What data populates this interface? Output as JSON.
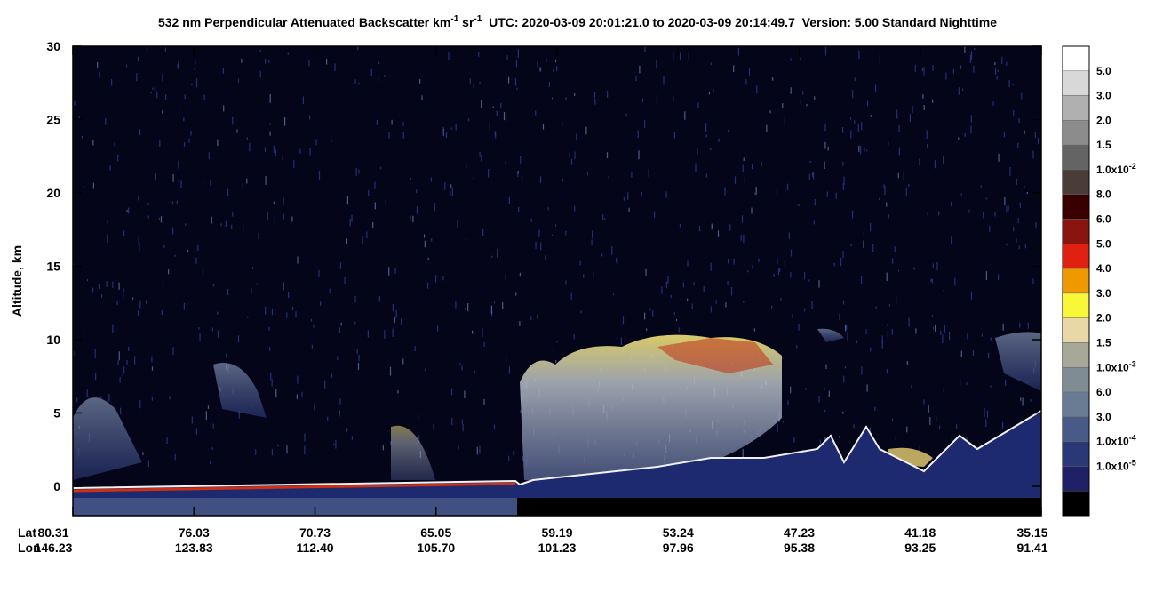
{
  "chart_data": {
    "type": "heatmap",
    "title": {
      "main": "532 nm Perpendicular Attenuated Backscatter km",
      "sup1": "-1",
      "mid": " sr",
      "sup2": "-1",
      "rest": "  UTC: 2020-03-09 20:01:21.0 to 2020-03-09 20:14:49.7  Version: 5.00 Standard Nighttime"
    },
    "y_label": "Altitude, km",
    "ylim": [
      -2,
      30
    ],
    "yticks": [
      0,
      5,
      10,
      15,
      20,
      25,
      30
    ],
    "x_row_labels": [
      "Lat",
      "Lon"
    ],
    "lat": [
      "80.31",
      "76.03",
      "70.73",
      "65.05",
      "59.19",
      "53.24",
      "47.23",
      "41.18",
      "35.15"
    ],
    "lon": [
      "146.23",
      "123.83",
      "112.40",
      "105.70",
      "101.23",
      "97.96",
      "95.38",
      "93.25",
      "91.41"
    ],
    "colorbar": {
      "colors": [
        "#ffffff",
        "#d8d8d8",
        "#b0b0b0",
        "#8c8c8c",
        "#646464",
        "#4a3c38",
        "#3a0000",
        "#8a1410",
        "#e02010",
        "#f09800",
        "#f8f838",
        "#e8d8a8",
        "#a8a898",
        "#808c94",
        "#6a7c94",
        "#485a88",
        "#2a3878",
        "#202068",
        "#000000"
      ],
      "labels": [
        {
          "text": "5.0"
        },
        {
          "text": "3.0"
        },
        {
          "text": "2.0"
        },
        {
          "text": "1.5"
        },
        {
          "text": "1.0x10",
          "sup": "-2"
        },
        {
          "text": "8.0"
        },
        {
          "text": "6.0"
        },
        {
          "text": "5.0"
        },
        {
          "text": "4.0"
        },
        {
          "text": "3.0"
        },
        {
          "text": "2.0"
        },
        {
          "text": "1.5"
        },
        {
          "text": "1.0x10",
          "sup": "-3"
        },
        {
          "text": "6.0"
        },
        {
          "text": "3.0"
        },
        {
          "text": "1.0x10",
          "sup": "-4"
        },
        {
          "text": "1.0x10",
          "sup": "-5"
        }
      ]
    }
  }
}
